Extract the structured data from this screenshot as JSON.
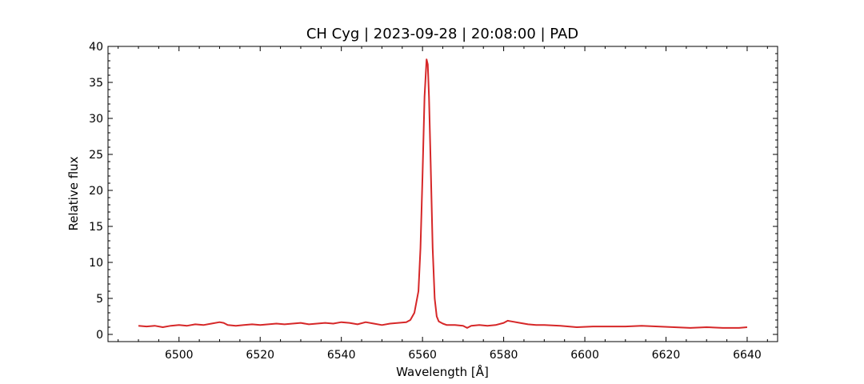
{
  "chart_data": {
    "type": "line",
    "title": "CH Cyg | 2023-09-28 | 20:08:00 | PAD",
    "xlabel": "Wavelength [Å]",
    "ylabel": "Relative flux",
    "xlim": [
      6482.5,
      6647.5
    ],
    "ylim": [
      -1,
      40
    ],
    "x_major_ticks": [
      6500,
      6520,
      6540,
      6560,
      6580,
      6600,
      6620,
      6640
    ],
    "x_minor_step": 5,
    "y_major_ticks": [
      0,
      5,
      10,
      15,
      20,
      25,
      30,
      35,
      40
    ],
    "y_minor_step": 1,
    "grid": false,
    "line_color": "#d62728",
    "series": [
      {
        "x": [
          6490,
          6492,
          6494,
          6496,
          6498,
          6500,
          6502,
          6504,
          6506,
          6508,
          6510,
          6511,
          6512,
          6514,
          6516,
          6518,
          6520,
          6522,
          6524,
          6526,
          6528,
          6530,
          6532,
          6534,
          6536,
          6538,
          6540,
          6542,
          6544,
          6546,
          6548,
          6550,
          6552,
          6554,
          6556,
          6557,
          6558,
          6559,
          6559.5,
          6560,
          6560.5,
          6561,
          6561.3,
          6561.6,
          6562,
          6562.5,
          6563,
          6563.5,
          6564,
          6565,
          6566,
          6568,
          6570,
          6571,
          6572,
          6574,
          6576,
          6578,
          6580,
          6581,
          6582,
          6584,
          6586,
          6588,
          6590,
          6594,
          6598,
          6602,
          6606,
          6610,
          6614,
          6618,
          6622,
          6626,
          6630,
          6634,
          6638,
          6640
        ],
        "y": [
          1.2,
          1.1,
          1.2,
          1.0,
          1.2,
          1.3,
          1.2,
          1.4,
          1.3,
          1.5,
          1.7,
          1.6,
          1.3,
          1.2,
          1.3,
          1.4,
          1.3,
          1.4,
          1.5,
          1.4,
          1.5,
          1.6,
          1.4,
          1.5,
          1.6,
          1.5,
          1.7,
          1.6,
          1.4,
          1.7,
          1.5,
          1.3,
          1.5,
          1.6,
          1.7,
          2.0,
          3.0,
          6.0,
          12.0,
          22.0,
          33.0,
          38.2,
          37.5,
          33.0,
          24.0,
          12.0,
          5.0,
          2.5,
          1.8,
          1.5,
          1.3,
          1.3,
          1.2,
          0.9,
          1.2,
          1.3,
          1.2,
          1.3,
          1.6,
          1.9,
          1.8,
          1.6,
          1.4,
          1.3,
          1.3,
          1.2,
          1.0,
          1.1,
          1.1,
          1.1,
          1.2,
          1.1,
          1.0,
          0.9,
          1.0,
          0.9,
          0.9,
          1.0
        ]
      }
    ]
  }
}
